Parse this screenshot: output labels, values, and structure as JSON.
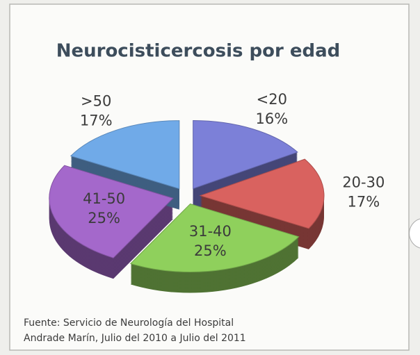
{
  "chart_data": {
    "type": "pie",
    "title": "Neurocisticercosis por edad",
    "categories": [
      "<20",
      "20-30",
      "31-40",
      "41-50",
      ">50"
    ],
    "values": [
      16,
      17,
      25,
      25,
      17
    ],
    "value_labels": [
      "16%",
      "17%",
      "25%",
      "25%",
      "17%"
    ],
    "colors": [
      "#7c80d8",
      "#d9625f",
      "#8fd05c",
      "#a468cb",
      "#70aae8"
    ],
    "source": [
      "Fuente: Servicio de Neurología del Hospital",
      "Andrade Marín, Julio del 2010 a Julio del 2011"
    ]
  }
}
